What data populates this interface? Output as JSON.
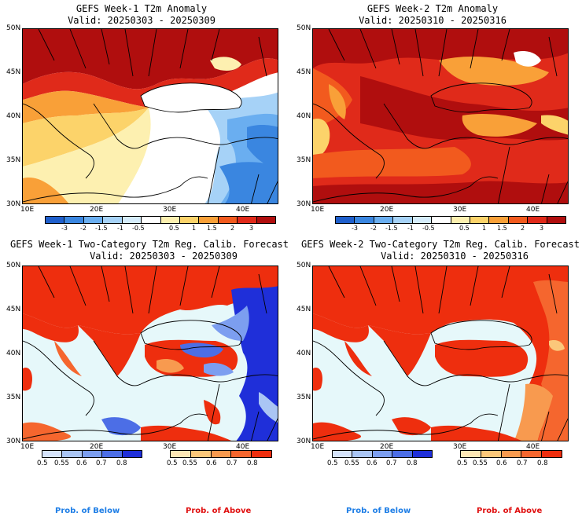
{
  "panels": {
    "w1_anom": {
      "title": "GEFS Week-1 T2m Anomaly",
      "valid": "Valid: 20250303 - 20250309"
    },
    "w2_anom": {
      "title": "GEFS Week-2 T2m Anomaly",
      "valid": "Valid: 20250310 - 20250316"
    },
    "w1_prob": {
      "title": "GEFS Week-1 Two-Category T2m Reg. Calib. Forecast",
      "valid": "Valid: 20250303 - 20250309"
    },
    "w2_prob": {
      "title": "GEFS Week-2 Two-Category T2m Reg. Calib. Forecast",
      "valid": "Valid: 20250310 - 20250316"
    }
  },
  "axes": {
    "lat": [
      "50N",
      "45N",
      "40N",
      "35N",
      "30N"
    ],
    "lon": [
      "10E",
      "20E",
      "30E",
      "40E"
    ]
  },
  "anomaly_colorbar": {
    "labels": [
      "-3",
      "-2",
      "-1.5",
      "-1",
      "-0.5",
      "0.5",
      "1",
      "1.5",
      "2",
      "3"
    ],
    "colors": [
      "#1f5fcc",
      "#3a86e0",
      "#6aaef0",
      "#a6d2f7",
      "#d5ecfb",
      "#ffffff",
      "#fdf0b0",
      "#fcd36a",
      "#f9a038",
      "#f25a1e",
      "#e02a1a",
      "#b00e0e"
    ]
  },
  "prob_colorbar": {
    "below_labels": [
      "0.5",
      "0.55",
      "0.6",
      "0.7",
      "0.8"
    ],
    "below_colors": [
      "#d5e3fb",
      "#aac5f4",
      "#7c9ef0",
      "#4c6ee6",
      "#1f2fd9"
    ],
    "above_labels": [
      "0.5",
      "0.55",
      "0.6",
      "0.7",
      "0.8"
    ],
    "above_colors": [
      "#fde7b5",
      "#fbc77a",
      "#f89a4f",
      "#f5662e",
      "#ee2e0e"
    ]
  },
  "legend": {
    "below": "Prob. of Below",
    "above": "Prob. of Above"
  },
  "colors": {
    "below_text": "#1e7ee6",
    "above_text": "#e01010",
    "sea": "#e6f8fa"
  }
}
